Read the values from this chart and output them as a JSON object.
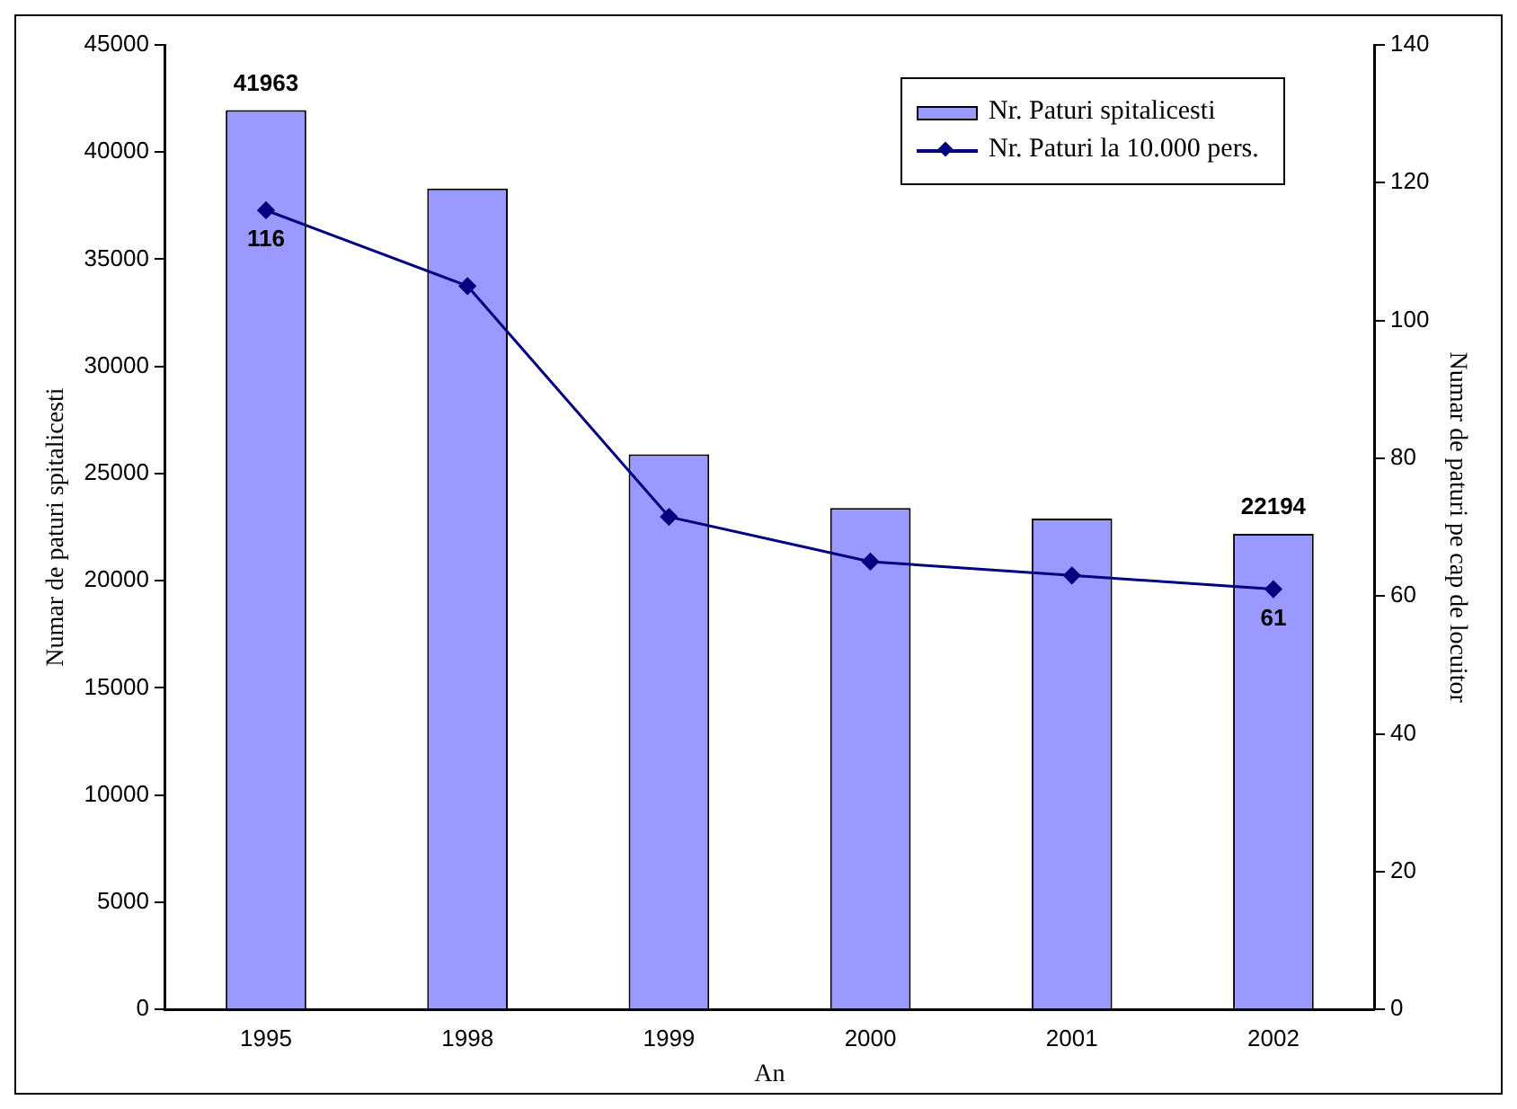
{
  "chart_data": {
    "type": "bar",
    "xlabel": "An",
    "ylabel": "Numar de paturi spitalicesti",
    "y2label": "Numar de paturi pe cap de locuitor",
    "categories": [
      "1995",
      "1998",
      "1999",
      "2000",
      "2001",
      "2002"
    ],
    "series": [
      {
        "name": "Nr. Paturi spitalicesti",
        "color": "#9999ff",
        "values": [
          41963,
          38300,
          25900,
          23400,
          22900,
          22194
        ],
        "value_labels": [
          "41963",
          null,
          null,
          null,
          null,
          "22194"
        ]
      },
      {
        "name": "Nr. Paturi la 10.000 pers.",
        "type": "line",
        "axis": "y2",
        "color": "#000080",
        "values": [
          116,
          105,
          71.5,
          65,
          63,
          61
        ],
        "value_labels": [
          "116",
          null,
          null,
          null,
          null,
          "61"
        ]
      }
    ],
    "ylim": [
      0,
      45000
    ],
    "yticks": [
      0,
      5000,
      10000,
      15000,
      20000,
      25000,
      30000,
      35000,
      40000,
      45000
    ],
    "y2lim": [
      0,
      140
    ],
    "y2ticks": [
      0,
      20,
      40,
      60,
      80,
      100,
      120,
      140
    ],
    "grid": false,
    "legend": "top right",
    "marker": "diamond",
    "line_style": "solid"
  }
}
